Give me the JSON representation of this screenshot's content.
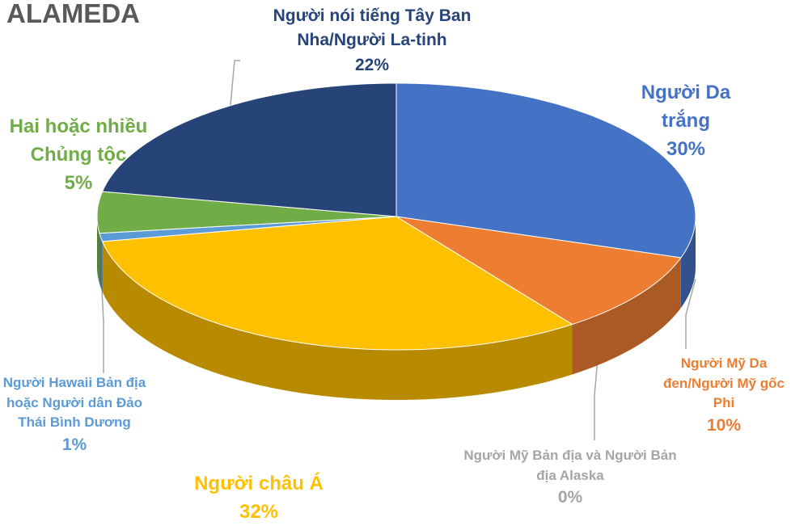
{
  "chart_data": {
    "type": "pie",
    "title": "ALAMEDA",
    "categories": [
      "Người Da trắng",
      "Người Mỹ Da đen/Người Mỹ gốc Phi",
      "Người Mỹ Bản địa và Người Bản địa Alaska",
      "Người châu Á",
      "Người Hawaii Bản địa hoặc Người dân Đảo Thái Bình Dương",
      "Hai hoặc nhiều Chủng tộc",
      "Người nói tiếng Tây Ban Nha/Người La-tinh"
    ],
    "values": [
      30,
      10,
      0,
      32,
      1,
      5,
      22
    ],
    "value_labels": [
      "30%",
      "10%",
      "0%",
      "32%",
      "1%",
      "5%",
      "22%"
    ],
    "colors": [
      "#4472c4",
      "#ed7d31",
      "#a5a5a5",
      "#ffc000",
      "#5b9bd5",
      "#70ad47",
      "#264478"
    ]
  }
}
